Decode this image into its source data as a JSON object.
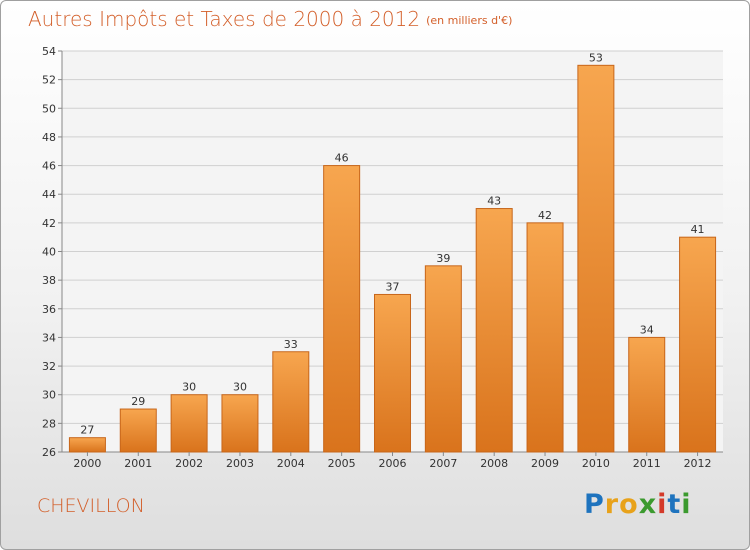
{
  "title": "Autres Impôts et Taxes de 2000 à 2012",
  "subtitle": "(en milliers d'€)",
  "commune": "CHEVILLON",
  "logo": {
    "text": "Proxiti",
    "letters": [
      {
        "char": "P",
        "color": "#1e73be"
      },
      {
        "char": "r",
        "color": "#e8a21a"
      },
      {
        "char": "o",
        "color": "#e8a21a"
      },
      {
        "char": "x",
        "color": "#3b9a2e"
      },
      {
        "char": "i",
        "color": "#d43a2a"
      },
      {
        "char": "t",
        "color": "#1e73be"
      },
      {
        "char": "i",
        "color": "#3b9a2e"
      }
    ]
  },
  "colors": {
    "title": "#d35f2a",
    "bar_top": "#f7a64f",
    "bar_bottom": "#d9731c",
    "bar_edge": "#c7661a",
    "grid": "#d0d0d0"
  },
  "chart_data": {
    "type": "bar",
    "categories": [
      "2000",
      "2001",
      "2002",
      "2003",
      "2004",
      "2005",
      "2006",
      "2007",
      "2008",
      "2009",
      "2010",
      "2011",
      "2012"
    ],
    "values": [
      27,
      29,
      30,
      30,
      33,
      46,
      37,
      39,
      43,
      42,
      53,
      34,
      41
    ],
    "value_labels": [
      "27",
      "29",
      "30",
      "30",
      "33",
      "46",
      "37",
      "39",
      "43",
      "42",
      "53",
      "34",
      "41"
    ],
    "ylim": [
      26,
      54
    ],
    "yticks": [
      26,
      28,
      30,
      32,
      34,
      36,
      38,
      40,
      42,
      44,
      46,
      48,
      50,
      52,
      54
    ],
    "grid": true,
    "xlabel": "",
    "ylabel": ""
  }
}
